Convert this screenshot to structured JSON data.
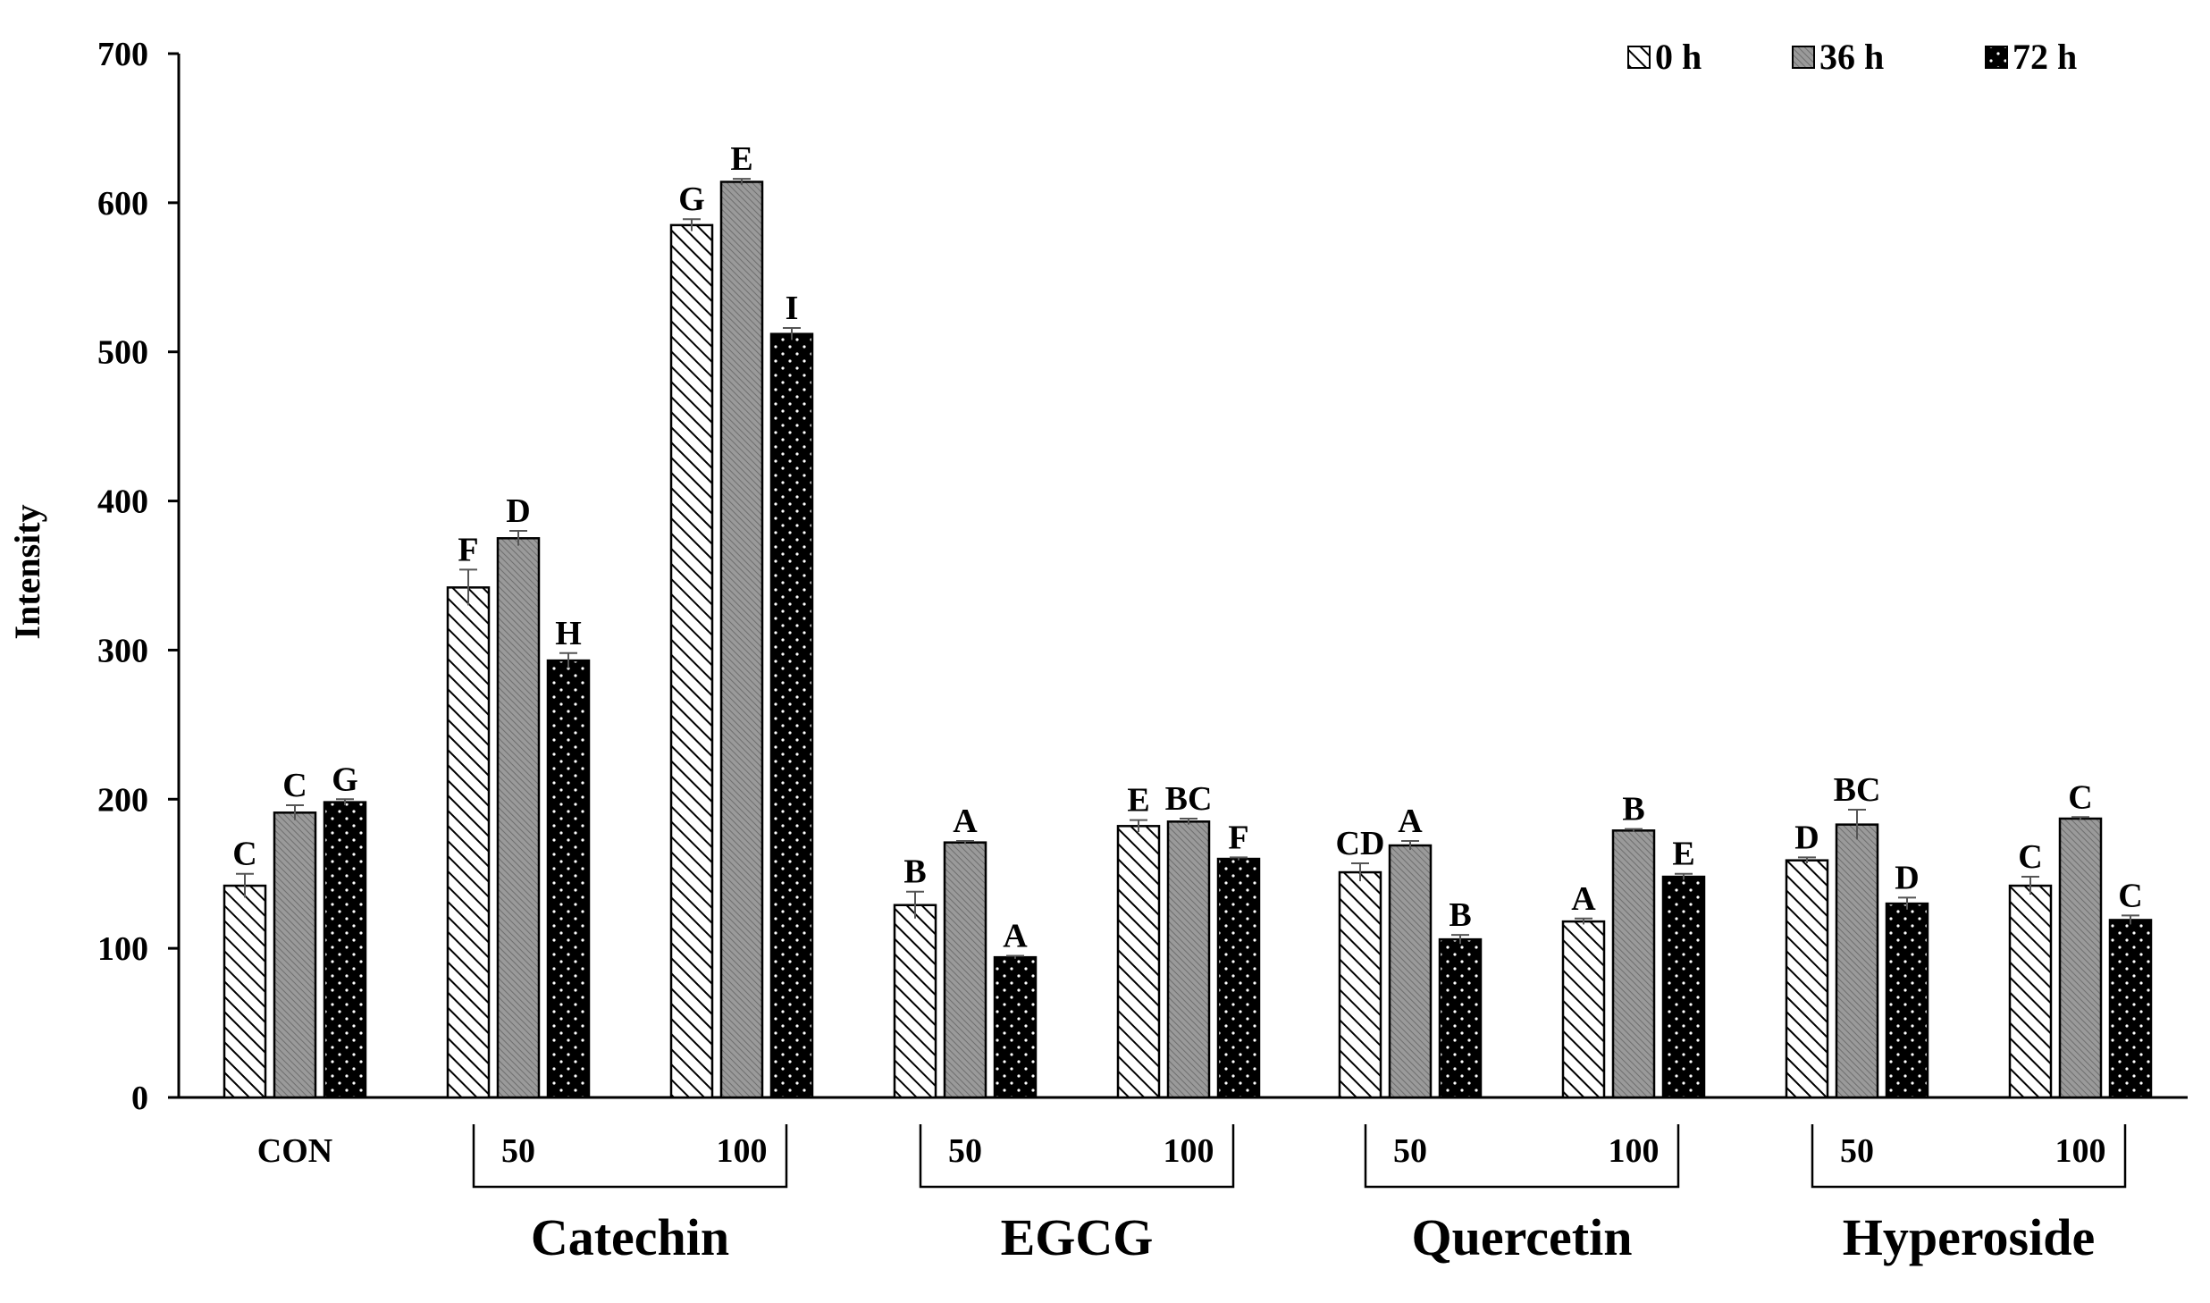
{
  "colors": {
    "axis": "#000000",
    "bar_outline": "#000000",
    "hatch_0h": "#000000",
    "fill_36h": "#8c8c8c",
    "fill_72h": "#000000",
    "dots_72h": "#ffffff"
  },
  "chart_data": {
    "type": "bar",
    "title": "",
    "xlabel": "",
    "ylabel": "Intensity",
    "ylim": [
      0,
      700
    ],
    "yticks": [
      0,
      100,
      200,
      300,
      400,
      500,
      600,
      700
    ],
    "grid": false,
    "legend_position": "top-right",
    "categories": [
      "CON",
      "50",
      "100",
      "50",
      "100",
      "50",
      "100",
      "50",
      "100"
    ],
    "groups": [
      {
        "label": "Catechin",
        "category_indices": [
          1,
          2
        ]
      },
      {
        "label": "EGCG",
        "category_indices": [
          3,
          4
        ]
      },
      {
        "label": "Quercetin",
        "category_indices": [
          5,
          6
        ]
      },
      {
        "label": "Hyperoside",
        "category_indices": [
          7,
          8
        ]
      }
    ],
    "series": [
      {
        "name": "0 h",
        "pattern": "diagonal-hatch",
        "values": [
          142,
          342,
          585,
          129,
          182,
          151,
          118,
          159,
          142
        ],
        "errors": [
          8,
          12,
          4,
          9,
          4,
          6,
          2,
          2,
          6
        ],
        "letters": [
          "C",
          "F",
          "G",
          "B",
          "E",
          "CD",
          "A",
          "D",
          "C"
        ]
      },
      {
        "name": "36 h",
        "pattern": "gray",
        "values": [
          191,
          375,
          614,
          171,
          185,
          169,
          179,
          183,
          187
        ],
        "errors": [
          5,
          5,
          2,
          1,
          2,
          3,
          1,
          10,
          1
        ],
        "letters": [
          "C",
          "D",
          "E",
          "A",
          "BC",
          "A",
          "B",
          "BC",
          "C"
        ]
      },
      {
        "name": "72 h",
        "pattern": "black-dots",
        "values": [
          198,
          293,
          512,
          94,
          160,
          106,
          148,
          130,
          119
        ],
        "errors": [
          2,
          5,
          4,
          1,
          1,
          3,
          2,
          4,
          3
        ],
        "letters": [
          "G",
          "H",
          "I",
          "A",
          "F",
          "B",
          "E",
          "D",
          "C"
        ]
      }
    ]
  }
}
